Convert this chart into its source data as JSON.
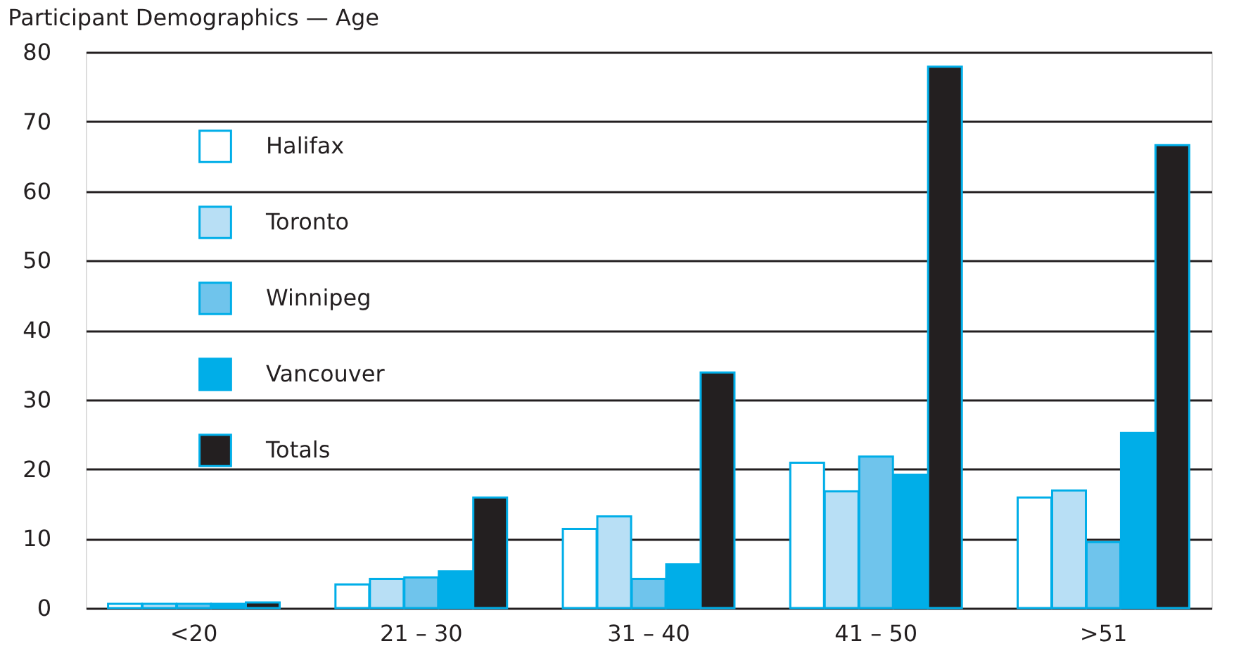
{
  "chart_data": {
    "type": "bar",
    "title": "Participant Demographics — Age",
    "categories": [
      "<20",
      "21 – 30",
      "31 – 40",
      "41 – 50",
      ">51"
    ],
    "series": [
      {
        "name": "Halifax",
        "color": "#ffffff",
        "values": [
          0.6,
          3.4,
          11.4,
          20.9,
          15.9
        ]
      },
      {
        "name": "Toronto",
        "color": "#b8dff5",
        "values": [
          0.6,
          4.2,
          13.2,
          16.8,
          16.9
        ]
      },
      {
        "name": "Winnipeg",
        "color": "#6fc4ec",
        "values": [
          0.6,
          4.4,
          4.2,
          21.8,
          9.5
        ]
      },
      {
        "name": "Vancouver",
        "color": "#00aee8",
        "values": [
          0.6,
          5.3,
          6.3,
          19.2,
          25.2
        ]
      },
      {
        "name": "Totals",
        "color": "#231f20",
        "values": [
          0.8,
          15.9,
          33.9,
          77.9,
          66.6
        ]
      }
    ],
    "ylim": [
      0,
      80
    ],
    "yticks": [
      0,
      10,
      20,
      30,
      40,
      50,
      60,
      70,
      80
    ],
    "grid": "y",
    "legend": "top left"
  }
}
